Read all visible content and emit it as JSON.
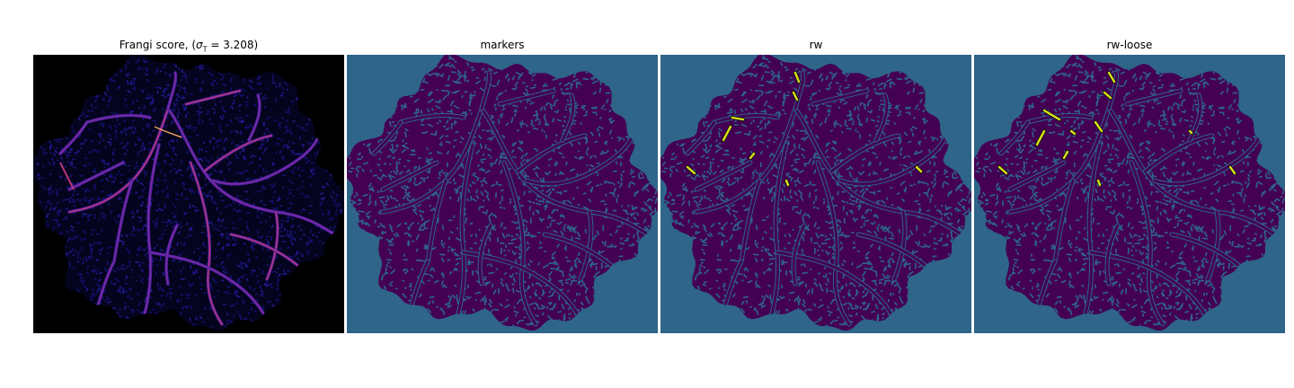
{
  "panels": [
    {
      "id": "frangi",
      "title_prefix": "Frangi score, (",
      "title_sigma": "σ",
      "title_sub": "T",
      "title_suffix": " = 3.208)",
      "colormap": "magma",
      "colors": {
        "background": "#000000",
        "tissue": "#0a0a4a",
        "vessel_low": "#4b1fa0",
        "vessel_mid": "#b5367a",
        "vessel_high": "#f0a060"
      }
    },
    {
      "id": "markers",
      "title": "markers",
      "colors": {
        "background": "#2e6589",
        "tissue": "#440154"
      }
    },
    {
      "id": "rw",
      "title": "rw",
      "colors": {
        "background": "#2e6589",
        "tissue": "#440154",
        "detected": "#d8e219"
      }
    },
    {
      "id": "rw-loose",
      "title": "rw-loose",
      "colors": {
        "background": "#2e6589",
        "tissue": "#440154",
        "detected": "#d8e219"
      }
    }
  ]
}
